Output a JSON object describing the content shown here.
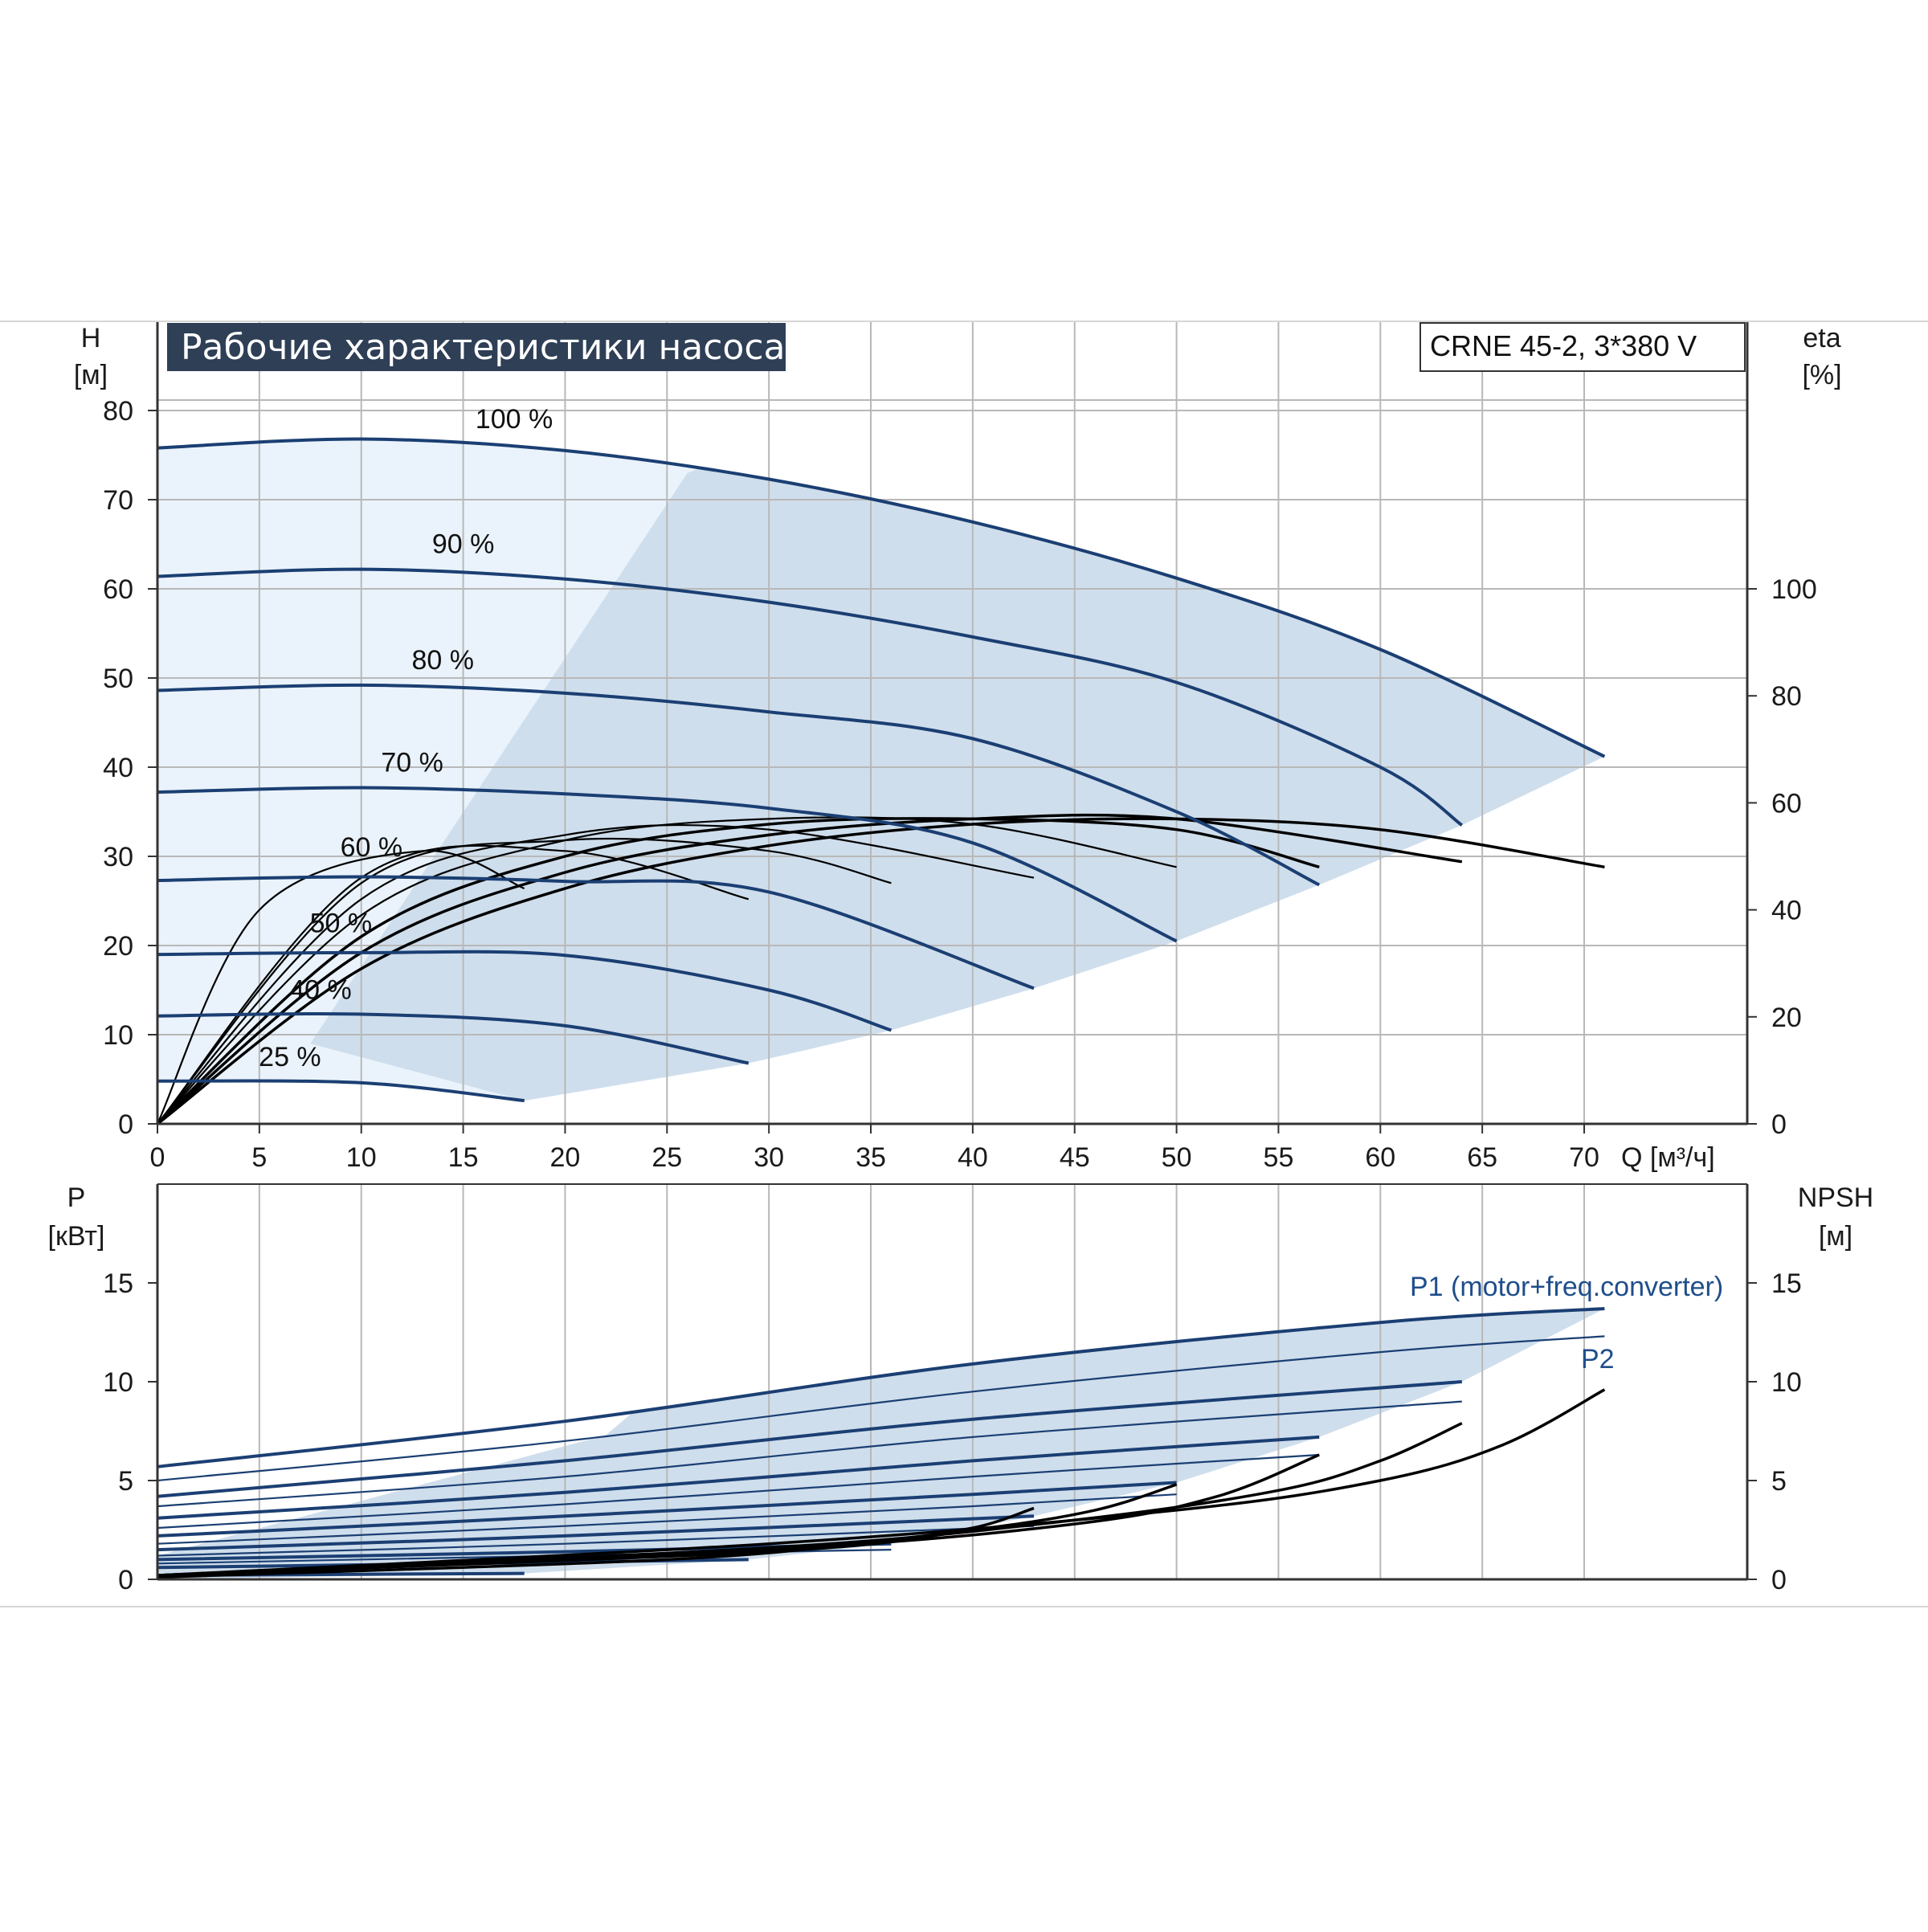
{
  "header": {
    "title": "Рабочие характеристики насоса",
    "model": "CRNE 45-2, 3*380 V"
  },
  "colors": {
    "curve": "#1b3f73",
    "eff": "#000000",
    "region_light": "#eaf3fb",
    "region_dark": "#cfdeec",
    "grid": "#b8b8b8",
    "title_bg": "#2e3f56",
    "p1": "#1f4e8c"
  },
  "chart_data": [
    {
      "type": "line",
      "name": "head",
      "xlabel": "Q [м³/ч]",
      "ylabel_top": "H",
      "ylabel_unit": "[м]",
      "y2label_top": "eta",
      "y2label_unit": "[%]",
      "xlim": [
        0,
        78
      ],
      "ylim": [
        0,
        90
      ],
      "y2lim": [
        0,
        150
      ],
      "xticks": [
        0,
        5,
        10,
        15,
        20,
        25,
        30,
        35,
        40,
        45,
        50,
        55,
        60,
        65,
        70
      ],
      "yticks": [
        0,
        10,
        20,
        30,
        40,
        50,
        60,
        70,
        80
      ],
      "y2ticks": [
        0,
        20,
        40,
        60,
        80,
        100
      ],
      "grid": true,
      "speed_labels": [
        {
          "text": "100 %",
          "x": 17.5,
          "y": 78
        },
        {
          "text": "90 %",
          "x": 15,
          "y": 64
        },
        {
          "text": "80 %",
          "x": 14,
          "y": 51
        },
        {
          "text": "70 %",
          "x": 12.5,
          "y": 39.5
        },
        {
          "text": "60 %",
          "x": 10.5,
          "y": 30
        },
        {
          "text": "50 %",
          "x": 9,
          "y": 21.5
        },
        {
          "text": "40 %",
          "x": 8,
          "y": 14
        },
        {
          "text": "25 %",
          "x": 6.5,
          "y": 6.5
        }
      ],
      "head_series": [
        {
          "speed": 100,
          "x": [
            0,
            10,
            20,
            30,
            40,
            50,
            60,
            71
          ],
          "values": [
            75.8,
            76.8,
            75.5,
            72.3,
            67.5,
            61.2,
            53.2,
            41.2
          ]
        },
        {
          "speed": 90,
          "x": [
            0,
            10,
            20,
            30,
            40,
            50,
            60,
            64
          ],
          "values": [
            61.4,
            62.2,
            61.1,
            58.5,
            54.6,
            49.5,
            40.0,
            33.5
          ]
        },
        {
          "speed": 80,
          "x": [
            0,
            10,
            20,
            30,
            40,
            50,
            57
          ],
          "values": [
            48.6,
            49.2,
            48.3,
            46.2,
            43.2,
            35.0,
            26.8
          ]
        },
        {
          "speed": 70,
          "x": [
            0,
            10,
            20,
            30,
            40,
            50
          ],
          "values": [
            37.2,
            37.7,
            37.0,
            35.4,
            31.5,
            20.5
          ]
        },
        {
          "speed": 60,
          "x": [
            0,
            10,
            20,
            30,
            43
          ],
          "values": [
            27.3,
            27.7,
            27.2,
            26.0,
            15.2
          ]
        },
        {
          "speed": 50,
          "x": [
            0,
            10,
            20,
            30,
            36
          ],
          "values": [
            19.0,
            19.2,
            18.9,
            15.0,
            10.5
          ]
        },
        {
          "speed": 40,
          "x": [
            0,
            10,
            20,
            29
          ],
          "values": [
            12.1,
            12.3,
            11.0,
            6.8
          ]
        },
        {
          "speed": 25,
          "x": [
            0,
            10,
            18
          ],
          "values": [
            4.8,
            4.6,
            2.6
          ]
        }
      ],
      "eff_series": [
        {
          "speed": 100,
          "x": [
            0,
            10,
            20,
            30,
            40,
            50,
            60,
            71
          ],
          "values": [
            0,
            29,
            44,
            52,
            56,
            57,
            55,
            48
          ]
        },
        {
          "speed": 90,
          "x": [
            0,
            10,
            20,
            30,
            40,
            50,
            64
          ],
          "values": [
            0,
            32,
            47,
            54,
            57,
            57,
            49
          ]
        },
        {
          "speed": 80,
          "x": [
            0,
            10,
            20,
            30,
            40,
            50,
            57
          ],
          "values": [
            0,
            35,
            50,
            56,
            57,
            55,
            48
          ]
        },
        {
          "speed": 70,
          "x": [
            0,
            10,
            20,
            30,
            40,
            50
          ],
          "values": [
            0,
            39,
            53,
            57,
            56,
            48
          ]
        },
        {
          "speed": 60,
          "x": [
            0,
            10,
            20,
            30,
            43
          ],
          "values": [
            0,
            42,
            54,
            55,
            46
          ]
        },
        {
          "speed": 50,
          "x": [
            0,
            10,
            20,
            30,
            36
          ],
          "values": [
            0,
            45,
            53,
            51,
            45
          ]
        },
        {
          "speed": 40,
          "x": [
            0,
            10,
            20,
            29
          ],
          "values": [
            0,
            46,
            51,
            42
          ]
        },
        {
          "speed": 25,
          "x": [
            0,
            5,
            13,
            18
          ],
          "values": [
            0,
            40,
            51,
            44
          ]
        }
      ]
    },
    {
      "type": "line",
      "name": "power",
      "xlim": [
        0,
        78
      ],
      "ylim": [
        0,
        20
      ],
      "y2lim": [
        0,
        20
      ],
      "ylabel_top": "P",
      "ylabel_unit": "[кВт]",
      "y2label_top": "NPSH",
      "y2label_unit": "[м]",
      "yticks": [
        0,
        5,
        10,
        15
      ],
      "y2ticks": [
        0,
        5,
        10,
        15
      ],
      "grid": true,
      "p1_label": "P1 (motor+freq.converter)",
      "p2_label": "P2",
      "p1_series": [
        {
          "speed": 100,
          "x": [
            0,
            20,
            40,
            60,
            71
          ],
          "values": [
            5.7,
            8.0,
            10.9,
            13.0,
            13.7
          ]
        },
        {
          "speed": 90,
          "x": [
            0,
            20,
            40,
            64
          ],
          "values": [
            4.2,
            6.0,
            8.1,
            10.0
          ]
        },
        {
          "speed": 80,
          "x": [
            0,
            20,
            40,
            57
          ],
          "values": [
            3.1,
            4.4,
            6.0,
            7.2
          ]
        },
        {
          "speed": 70,
          "x": [
            0,
            20,
            40,
            50
          ],
          "values": [
            2.2,
            3.2,
            4.3,
            4.9
          ]
        },
        {
          "speed": 60,
          "x": [
            0,
            20,
            43
          ],
          "values": [
            1.5,
            2.2,
            3.2
          ]
        },
        {
          "speed": 50,
          "x": [
            0,
            20,
            36
          ],
          "values": [
            1.0,
            1.4,
            1.8
          ]
        },
        {
          "speed": 40,
          "x": [
            0,
            15,
            29
          ],
          "values": [
            0.6,
            0.8,
            1.0
          ]
        },
        {
          "speed": 25,
          "x": [
            0,
            18
          ],
          "values": [
            0.2,
            0.3
          ]
        }
      ],
      "p2_series": [
        {
          "speed": 100,
          "x": [
            0,
            20,
            40,
            60,
            71
          ],
          "values": [
            5.0,
            7.0,
            9.5,
            11.5,
            12.3
          ]
        },
        {
          "speed": 90,
          "x": [
            0,
            20,
            40,
            64
          ],
          "values": [
            3.7,
            5.2,
            7.2,
            9.0
          ]
        },
        {
          "speed": 80,
          "x": [
            0,
            20,
            40,
            57
          ],
          "values": [
            2.6,
            3.8,
            5.2,
            6.3
          ]
        },
        {
          "speed": 70,
          "x": [
            0,
            20,
            40,
            50
          ],
          "values": [
            1.8,
            2.7,
            3.7,
            4.3
          ]
        },
        {
          "speed": 60,
          "x": [
            0,
            20,
            43
          ],
          "values": [
            1.2,
            1.8,
            2.7
          ]
        },
        {
          "speed": 50,
          "x": [
            0,
            20,
            36
          ],
          "values": [
            0.8,
            1.2,
            1.5
          ]
        }
      ],
      "npsh_series": [
        {
          "speed": 100,
          "x": [
            0,
            30,
            50,
            60,
            66,
            71
          ],
          "values": [
            0.2,
            1.8,
            3.5,
            5.0,
            6.8,
            9.6
          ]
        },
        {
          "speed": 90,
          "x": [
            0,
            30,
            45,
            55,
            60,
            64
          ],
          "values": [
            0.2,
            1.6,
            3.0,
            4.5,
            6.0,
            7.9
          ]
        },
        {
          "speed": 80,
          "x": [
            0,
            30,
            45,
            52,
            57
          ],
          "values": [
            0.2,
            1.5,
            2.8,
            4.2,
            6.3
          ]
        },
        {
          "speed": 70,
          "x": [
            0,
            30,
            40,
            46,
            50
          ],
          "values": [
            0.2,
            1.4,
            2.5,
            3.5,
            4.8
          ]
        },
        {
          "speed": 60,
          "x": [
            0,
            25,
            35,
            40,
            43
          ],
          "values": [
            0.1,
            1.0,
            1.9,
            2.6,
            3.6
          ]
        }
      ]
    }
  ]
}
